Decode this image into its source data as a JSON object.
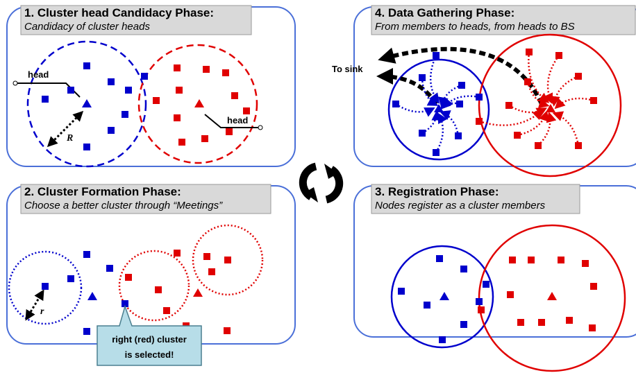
{
  "panels": [
    {
      "title": "1. Cluster head Candidacy Phase:",
      "subtitle": "Candidacy of cluster heads"
    },
    {
      "title": "2. Cluster Formation Phase:",
      "subtitle": "Choose a better cluster through “Meetings”"
    },
    {
      "title": "3. Registration Phase:",
      "subtitle": "Nodes register as a cluster members"
    },
    {
      "title": "4. Data Gathering Phase:",
      "subtitle": "From members to heads, from heads to BS"
    }
  ],
  "labels": {
    "head_left": "head",
    "head_right": "head",
    "R": "R",
    "r": "r",
    "to_sink": "To sink"
  },
  "callout": {
    "lines": [
      "right (red) cluster",
      "is selected!"
    ]
  }
}
